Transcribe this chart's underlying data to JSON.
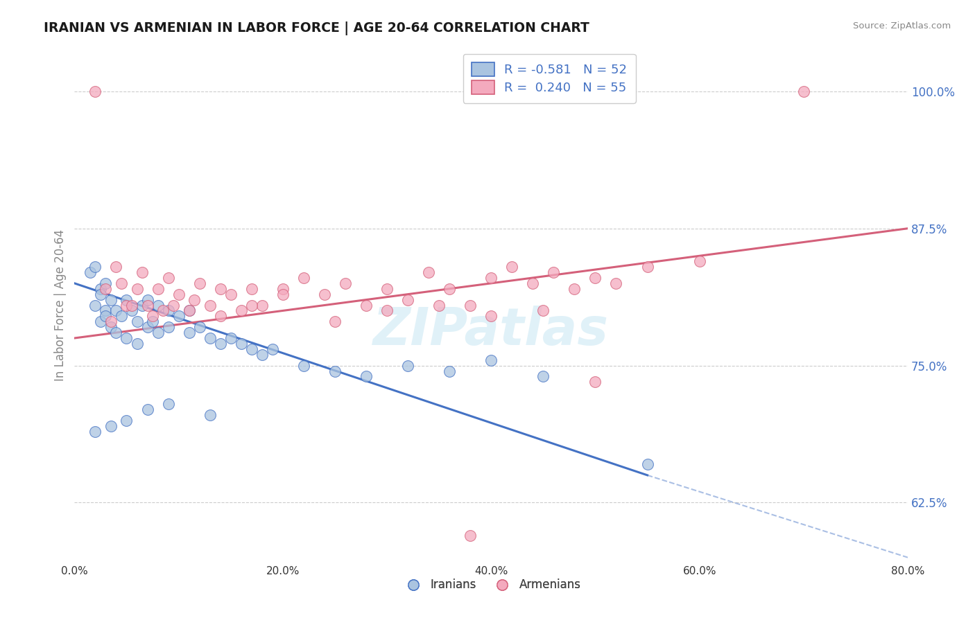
{
  "title": "IRANIAN VS ARMENIAN IN LABOR FORCE | AGE 20-64 CORRELATION CHART",
  "source": "Source: ZipAtlas.com",
  "ylabel_label": "In Labor Force | Age 20-64",
  "x_tick_vals": [
    0.0,
    20.0,
    40.0,
    60.0,
    80.0
  ],
  "y_tick_vals": [
    62.5,
    75.0,
    87.5,
    100.0
  ],
  "xlim": [
    0.0,
    80.0
  ],
  "ylim": [
    57.0,
    104.0
  ],
  "legend_blue_label": "R = -0.581   N = 52",
  "legend_pink_label": "R =  0.240   N = 55",
  "legend_bottom_blue": "Iranians",
  "legend_bottom_pink": "Armenians",
  "blue_color": "#aac4e0",
  "pink_color": "#f4aabe",
  "blue_line_color": "#4472c4",
  "pink_line_color": "#d4607a",
  "watermark": "ZIPatlas",
  "blue_trend_x0": 0.0,
  "blue_trend_y0": 82.5,
  "blue_trend_x1": 55.0,
  "blue_trend_y1": 65.0,
  "blue_trend_dash_x1": 80.0,
  "blue_trend_dash_y1": 57.5,
  "pink_trend_x0": 0.0,
  "pink_trend_y0": 77.5,
  "pink_trend_x1": 80.0,
  "pink_trend_y1": 87.5,
  "iranians_x": [
    1.5,
    2.0,
    2.0,
    2.5,
    2.5,
    2.5,
    3.0,
    3.0,
    3.0,
    3.5,
    3.5,
    4.0,
    4.0,
    4.5,
    5.0,
    5.0,
    5.5,
    6.0,
    6.0,
    6.5,
    7.0,
    7.0,
    7.5,
    8.0,
    8.0,
    9.0,
    9.0,
    10.0,
    11.0,
    11.0,
    12.0,
    13.0,
    14.0,
    15.0,
    16.0,
    17.0,
    18.0,
    19.0,
    22.0,
    25.0,
    28.0,
    32.0,
    36.0,
    40.0,
    45.0,
    55.0,
    2.0,
    3.5,
    5.0,
    7.0,
    9.0,
    13.0
  ],
  "iranians_y": [
    83.5,
    84.0,
    80.5,
    82.0,
    79.0,
    81.5,
    80.0,
    82.5,
    79.5,
    81.0,
    78.5,
    80.0,
    78.0,
    79.5,
    81.0,
    77.5,
    80.0,
    79.0,
    77.0,
    80.5,
    78.5,
    81.0,
    79.0,
    78.0,
    80.5,
    78.5,
    80.0,
    79.5,
    78.0,
    80.0,
    78.5,
    77.5,
    77.0,
    77.5,
    77.0,
    76.5,
    76.0,
    76.5,
    75.0,
    74.5,
    74.0,
    75.0,
    74.5,
    75.5,
    74.0,
    66.0,
    69.0,
    69.5,
    70.0,
    71.0,
    71.5,
    70.5
  ],
  "armenians_x": [
    2.0,
    3.0,
    4.0,
    4.5,
    5.0,
    6.0,
    6.5,
    7.0,
    8.0,
    8.5,
    9.0,
    10.0,
    11.0,
    12.0,
    13.0,
    14.0,
    15.0,
    16.0,
    17.0,
    18.0,
    20.0,
    22.0,
    24.0,
    26.0,
    28.0,
    30.0,
    32.0,
    34.0,
    36.0,
    38.0,
    40.0,
    42.0,
    44.0,
    46.0,
    48.0,
    50.0,
    52.0,
    55.0,
    60.0,
    70.0,
    3.5,
    5.5,
    7.5,
    9.5,
    11.5,
    14.0,
    17.0,
    20.0,
    25.0,
    30.0,
    35.0,
    40.0,
    45.0,
    50.0,
    38.0
  ],
  "armenians_y": [
    100.0,
    82.0,
    84.0,
    82.5,
    80.5,
    82.0,
    83.5,
    80.5,
    82.0,
    80.0,
    83.0,
    81.5,
    80.0,
    82.5,
    80.5,
    82.0,
    81.5,
    80.0,
    82.0,
    80.5,
    82.0,
    83.0,
    81.5,
    82.5,
    80.5,
    82.0,
    81.0,
    83.5,
    82.0,
    80.5,
    83.0,
    84.0,
    82.5,
    83.5,
    82.0,
    83.0,
    82.5,
    84.0,
    84.5,
    100.0,
    79.0,
    80.5,
    79.5,
    80.5,
    81.0,
    79.5,
    80.5,
    81.5,
    79.0,
    80.0,
    80.5,
    79.5,
    80.0,
    73.5,
    59.5
  ]
}
